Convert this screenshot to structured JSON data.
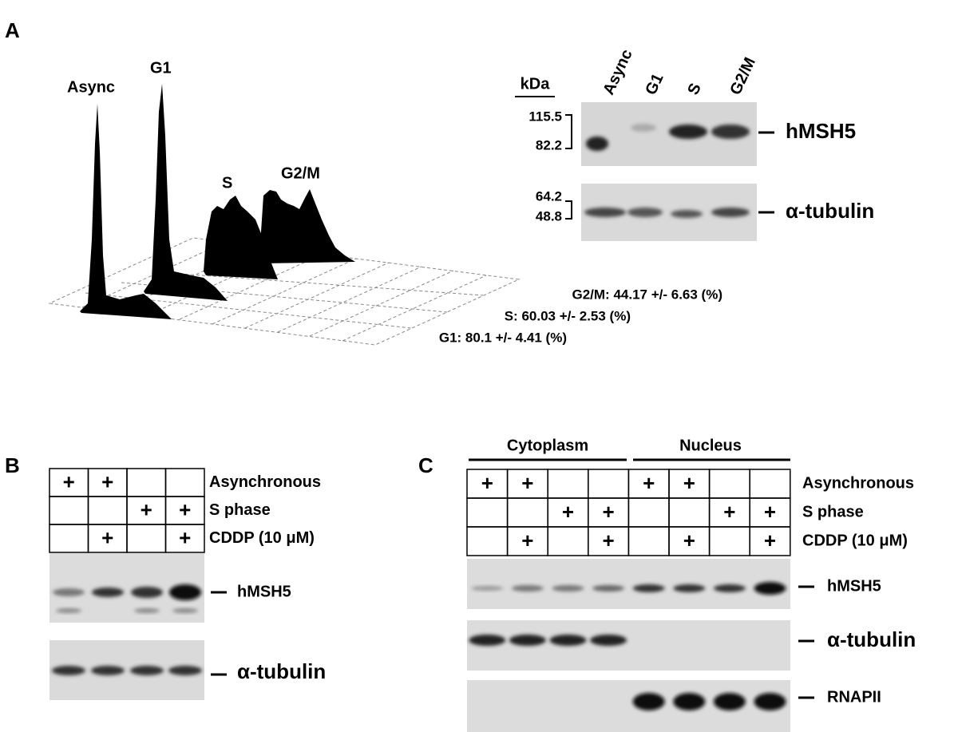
{
  "panel_a": {
    "label": "A",
    "histogram_labels": [
      "Async",
      "G1",
      "S",
      "G2/M"
    ],
    "stats": [
      "G2/M:  44.17 +/- 6.63 (%)",
      "S:  60.03 +/- 2.53 (%)",
      "G1: 80.1 +/- 4.41 (%)"
    ],
    "blot": {
      "kda_label": "kDa",
      "lanes": [
        "Async",
        "G1",
        "S",
        "G2/M"
      ],
      "markers": [
        "115.5",
        "82.2",
        "64.2",
        "48.8"
      ],
      "proteins": [
        "hMSH5",
        "α-tubulin"
      ]
    }
  },
  "panel_b": {
    "label": "B",
    "rows": [
      {
        "label": "Asynchronous",
        "cells": [
          "+",
          "+",
          null,
          null
        ]
      },
      {
        "label": "S phase",
        "cells": [
          null,
          null,
          "+",
          "+"
        ]
      },
      {
        "label": "CDDP (10 μM)",
        "cells": [
          null,
          "+",
          null,
          "+"
        ]
      }
    ],
    "proteins": [
      "hMSH5",
      "α-tubulin"
    ]
  },
  "panel_c": {
    "label": "C",
    "groups": [
      "Cytoplasm",
      "Nucleus"
    ],
    "rows": [
      {
        "label": "Asynchronous",
        "cells": [
          "+",
          "+",
          null,
          null,
          "+",
          "+",
          null,
          null
        ]
      },
      {
        "label": "S phase",
        "cells": [
          null,
          null,
          "+",
          "+",
          null,
          null,
          "+",
          "+"
        ]
      },
      {
        "label": "CDDP (10 μM)",
        "cells": [
          null,
          "+",
          null,
          "+",
          null,
          "+",
          null,
          "+"
        ]
      }
    ],
    "proteins": [
      "hMSH5",
      "α-tubulin",
      "RNAPII"
    ]
  }
}
